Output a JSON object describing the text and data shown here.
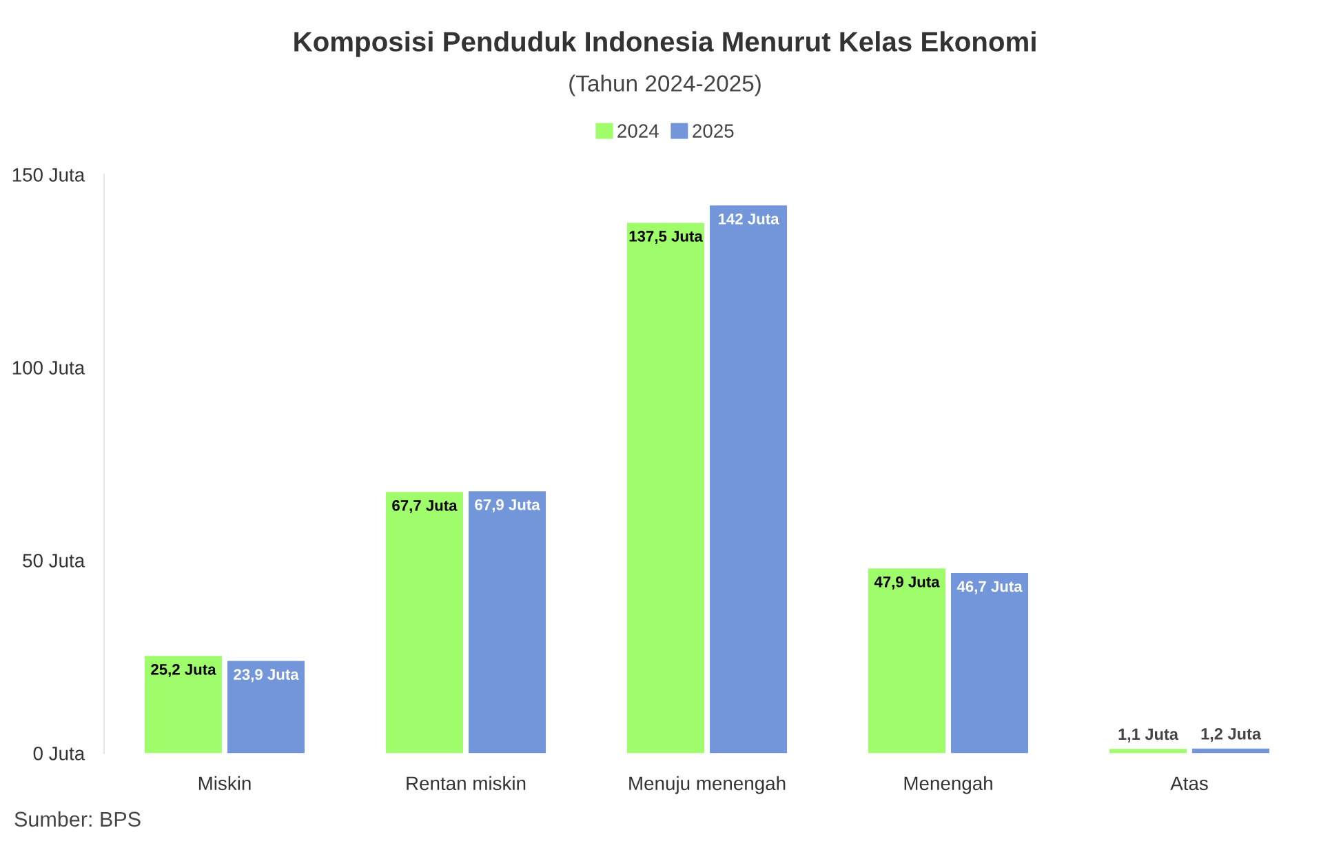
{
  "chart_data": {
    "type": "bar",
    "title": "Komposisi Penduduk Indonesia Menurut Kelas Ekonomi",
    "subtitle": "(Tahun 2024-2025)",
    "categories": [
      "Miskin",
      "Rentan miskin",
      "Menuju menengah",
      "Menengah",
      "Atas"
    ],
    "series": [
      {
        "name": "2024",
        "color": "#9ffc6b",
        "values": [
          25.2,
          67.7,
          137.5,
          47.9,
          1.1
        ],
        "value_labels": [
          "25,2 Juta",
          "67,7 Juta",
          "137,5 Juta",
          "47,9 Juta",
          "1,1 Juta"
        ]
      },
      {
        "name": "2025",
        "color": "#7396db",
        "values": [
          23.9,
          67.9,
          142,
          46.7,
          1.2
        ],
        "value_labels": [
          "23,9 Juta",
          "67,9 Juta",
          "142 Juta",
          "46,7 Juta",
          "1,2 Juta"
        ]
      }
    ],
    "ylim": [
      0,
      150
    ],
    "yticks": [
      {
        "value": 0,
        "label": "0 Juta"
      },
      {
        "value": 50,
        "label": "50 Juta"
      },
      {
        "value": 100,
        "label": "100 Juta"
      },
      {
        "value": 150,
        "label": "150 Juta"
      }
    ],
    "grid": false,
    "legend": "top",
    "annotations": [
      "Sumber: BPS"
    ]
  }
}
